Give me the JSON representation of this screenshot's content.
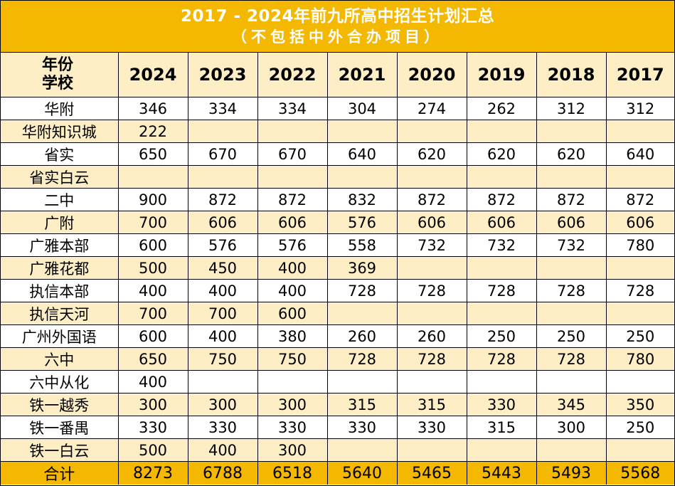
{
  "title": {
    "main": "2017 - 2024年前九所高中招生计划汇总",
    "sub": "（不包括中外合办项目）"
  },
  "header": {
    "corner_line1": "年份",
    "corner_line2": "学校",
    "years": [
      "2024",
      "2023",
      "2022",
      "2021",
      "2020",
      "2019",
      "2018",
      "2017"
    ]
  },
  "rows": [
    {
      "school": "华附",
      "values": [
        "346",
        "334",
        "334",
        "304",
        "274",
        "262",
        "312",
        "312"
      ]
    },
    {
      "school": "华附知识城",
      "values": [
        "222",
        "",
        "",
        "",
        "",
        "",
        "",
        ""
      ]
    },
    {
      "school": "省实",
      "values": [
        "650",
        "670",
        "670",
        "640",
        "620",
        "620",
        "620",
        "640"
      ]
    },
    {
      "school": "省实白云",
      "values": [
        "",
        "",
        "",
        "",
        "",
        "",
        "",
        ""
      ]
    },
    {
      "school": "二中",
      "values": [
        "900",
        "872",
        "872",
        "832",
        "872",
        "872",
        "872",
        "872"
      ]
    },
    {
      "school": "广附",
      "values": [
        "700",
        "606",
        "606",
        "576",
        "606",
        "606",
        "606",
        "606"
      ]
    },
    {
      "school": "广雅本部",
      "values": [
        "600",
        "576",
        "576",
        "558",
        "732",
        "732",
        "732",
        "780"
      ]
    },
    {
      "school": "广雅花都",
      "values": [
        "500",
        "450",
        "400",
        "369",
        "",
        "",
        "",
        ""
      ]
    },
    {
      "school": "执信本部",
      "values": [
        "400",
        "400",
        "400",
        "728",
        "728",
        "728",
        "728",
        "728"
      ]
    },
    {
      "school": "执信天河",
      "values": [
        "700",
        "700",
        "600",
        "",
        "",
        "",
        "",
        ""
      ]
    },
    {
      "school": "广州外国语",
      "values": [
        "600",
        "400",
        "380",
        "260",
        "260",
        "250",
        "250",
        "250"
      ]
    },
    {
      "school": "六中",
      "values": [
        "650",
        "750",
        "750",
        "728",
        "728",
        "728",
        "728",
        "780"
      ]
    },
    {
      "school": "六中从化",
      "values": [
        "400",
        "",
        "",
        "",
        "",
        "",
        "",
        ""
      ]
    },
    {
      "school": "铁一越秀",
      "values": [
        "300",
        "300",
        "300",
        "315",
        "315",
        "330",
        "345",
        "350"
      ]
    },
    {
      "school": "铁一番禺",
      "values": [
        "330",
        "330",
        "330",
        "330",
        "330",
        "315",
        "300",
        "250"
      ]
    },
    {
      "school": "铁一白云",
      "values": [
        "500",
        "400",
        "300",
        "",
        "",
        "",
        "",
        ""
      ]
    }
  ],
  "total": {
    "label": "合计",
    "values": [
      "8273",
      "6788",
      "6518",
      "5640",
      "5465",
      "5443",
      "5493",
      "5568"
    ]
  },
  "colors": {
    "accent_gold": "#f5b800",
    "row_tint": "#fdeec6",
    "title_text": "#ffffff"
  }
}
